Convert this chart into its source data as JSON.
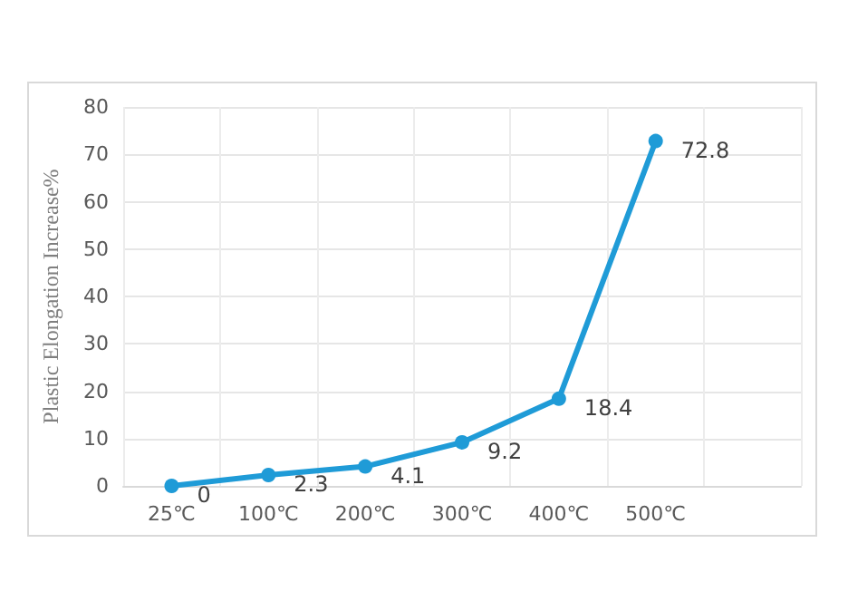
{
  "chart_data": {
    "type": "line",
    "ylabel": "Plastic Elongation Increase%",
    "categories": [
      "25℃",
      "100℃",
      "200℃",
      "300℃",
      "400℃",
      "500℃",
      null
    ],
    "series": [
      {
        "color": "#1f9bd7",
        "values": [
          0,
          2.3,
          4.1,
          9.2,
          18.4,
          72.8,
          null
        ]
      }
    ],
    "ylim": [
      0,
      80
    ],
    "yticks": [
      0,
      10,
      20,
      30,
      40,
      50,
      60,
      70,
      80
    ],
    "grid": true,
    "marker": "circle",
    "line_style": "solid",
    "data_labels": true
  }
}
